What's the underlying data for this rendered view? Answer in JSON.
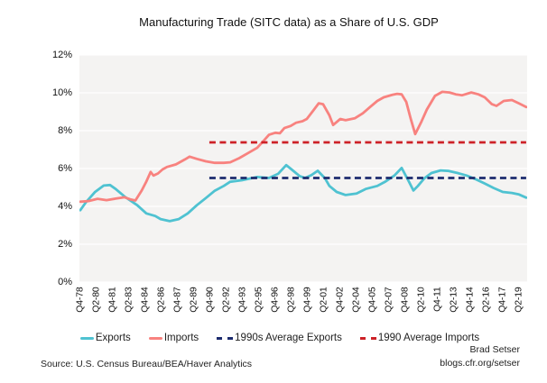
{
  "footer": {
    "source": "Source: U.S. Census Bureau/BEA/Haver Analytics",
    "author": "Brad Setser",
    "url": "blogs.cfr.org/setser"
  },
  "colors": {
    "exports": "#4fc2d1",
    "imports": "#f8827f",
    "avg_exports": "#1c2b6e",
    "avg_imports": "#cd2127",
    "plot_bg": "#f4f3f2",
    "gridline": "#fdfdfc",
    "text": "#1a1a1a"
  },
  "chart_data": {
    "type": "line",
    "title": "Manufacturing Trade (SITC data) as a Share of U.S. GDP",
    "xlabel": "",
    "ylabel": "",
    "ylim": [
      0,
      12
    ],
    "grid": "horizontal",
    "legend_position": "bottom",
    "y_ticks": [
      "0%",
      "2%",
      "4%",
      "6%",
      "8%",
      "10%",
      "12%"
    ],
    "x_tick_labels": [
      "Q4-78",
      "Q2-80",
      "Q4-81",
      "Q2-83",
      "Q4-84",
      "Q2-86",
      "Q4-87",
      "Q2-89",
      "Q4-90",
      "Q2-92",
      "Q4-93",
      "Q2-95",
      "Q4-96",
      "Q2-98",
      "Q4-99",
      "Q2-01",
      "Q4-02",
      "Q2-04",
      "Q4-05",
      "Q2-07",
      "Q4-08",
      "Q2-10",
      "Q4-11",
      "Q2-13",
      "Q4-14",
      "Q2-16",
      "Q4-17",
      "Q2-19"
    ],
    "x_unit_note": "x values below are in x-tick index units (0 = Q4-78, 1 tick = 6 quarters), values are % of GDP",
    "series": [
      {
        "name": "Exports",
        "color_key": "exports",
        "style": "solid",
        "points": [
          [
            0,
            3.8
          ],
          [
            0.33,
            4.2
          ],
          [
            0.89,
            4.75
          ],
          [
            1.44,
            5.1
          ],
          [
            1.83,
            5.13
          ],
          [
            2.17,
            4.92
          ],
          [
            2.72,
            4.52
          ],
          [
            3.5,
            4.06
          ],
          [
            4.06,
            3.63
          ],
          [
            4.61,
            3.49
          ],
          [
            4.94,
            3.33
          ],
          [
            5.5,
            3.22
          ],
          [
            6.06,
            3.33
          ],
          [
            6.61,
            3.63
          ],
          [
            7.17,
            4.06
          ],
          [
            7.72,
            4.44
          ],
          [
            8.28,
            4.83
          ],
          [
            8.83,
            5.08
          ],
          [
            9.22,
            5.3
          ],
          [
            9.94,
            5.38
          ],
          [
            10.89,
            5.55
          ],
          [
            11.61,
            5.5
          ],
          [
            12.17,
            5.72
          ],
          [
            12.67,
            6.18
          ],
          [
            13,
            5.95
          ],
          [
            13.5,
            5.6
          ],
          [
            13.83,
            5.5
          ],
          [
            14.22,
            5.65
          ],
          [
            14.61,
            5.88
          ],
          [
            15.06,
            5.48
          ],
          [
            15.33,
            5.08
          ],
          [
            15.78,
            4.76
          ],
          [
            16.33,
            4.6
          ],
          [
            17,
            4.68
          ],
          [
            17.56,
            4.92
          ],
          [
            18.28,
            5.08
          ],
          [
            18.78,
            5.31
          ],
          [
            19.33,
            5.63
          ],
          [
            19.78,
            6.03
          ],
          [
            20.22,
            5.31
          ],
          [
            20.5,
            4.84
          ],
          [
            20.78,
            5.08
          ],
          [
            21.17,
            5.48
          ],
          [
            21.61,
            5.76
          ],
          [
            22.17,
            5.9
          ],
          [
            22.67,
            5.87
          ],
          [
            23.22,
            5.76
          ],
          [
            23.78,
            5.63
          ],
          [
            24.33,
            5.44
          ],
          [
            24.89,
            5.21
          ],
          [
            25.44,
            4.97
          ],
          [
            26,
            4.76
          ],
          [
            26.56,
            4.71
          ],
          [
            27,
            4.63
          ],
          [
            27.44,
            4.46
          ]
        ]
      },
      {
        "name": "Imports",
        "color_key": "imports",
        "style": "solid",
        "points": [
          [
            0,
            4.25
          ],
          [
            0.5,
            4.28
          ],
          [
            1.06,
            4.4
          ],
          [
            1.61,
            4.33
          ],
          [
            2.17,
            4.41
          ],
          [
            2.72,
            4.48
          ],
          [
            3.11,
            4.36
          ],
          [
            3.39,
            4.31
          ],
          [
            3.78,
            4.84
          ],
          [
            4.06,
            5.31
          ],
          [
            4.33,
            5.82
          ],
          [
            4.5,
            5.63
          ],
          [
            4.78,
            5.74
          ],
          [
            5.06,
            5.95
          ],
          [
            5.33,
            6.08
          ],
          [
            5.89,
            6.22
          ],
          [
            6.44,
            6.48
          ],
          [
            6.72,
            6.63
          ],
          [
            7.17,
            6.51
          ],
          [
            7.72,
            6.38
          ],
          [
            8.28,
            6.3
          ],
          [
            8.83,
            6.3
          ],
          [
            9.22,
            6.33
          ],
          [
            9.78,
            6.55
          ],
          [
            10.33,
            6.82
          ],
          [
            10.89,
            7.1
          ],
          [
            11.28,
            7.46
          ],
          [
            11.61,
            7.78
          ],
          [
            12,
            7.89
          ],
          [
            12.28,
            7.86
          ],
          [
            12.56,
            8.14
          ],
          [
            12.94,
            8.25
          ],
          [
            13.28,
            8.42
          ],
          [
            13.67,
            8.5
          ],
          [
            13.94,
            8.62
          ],
          [
            14.33,
            9.05
          ],
          [
            14.67,
            9.45
          ],
          [
            14.94,
            9.4
          ],
          [
            15.33,
            8.81
          ],
          [
            15.56,
            8.3
          ],
          [
            16,
            8.62
          ],
          [
            16.33,
            8.55
          ],
          [
            16.89,
            8.65
          ],
          [
            17.39,
            8.92
          ],
          [
            17.83,
            9.25
          ],
          [
            18.28,
            9.57
          ],
          [
            18.67,
            9.76
          ],
          [
            19.22,
            9.9
          ],
          [
            19.5,
            9.95
          ],
          [
            19.78,
            9.92
          ],
          [
            20.06,
            9.52
          ],
          [
            20.33,
            8.65
          ],
          [
            20.61,
            7.82
          ],
          [
            21,
            8.49
          ],
          [
            21.33,
            9.12
          ],
          [
            21.83,
            9.84
          ],
          [
            22.28,
            10.05
          ],
          [
            22.72,
            10.02
          ],
          [
            23.11,
            9.92
          ],
          [
            23.5,
            9.87
          ],
          [
            24.06,
            10.02
          ],
          [
            24.5,
            9.92
          ],
          [
            24.89,
            9.76
          ],
          [
            25.33,
            9.4
          ],
          [
            25.61,
            9.31
          ],
          [
            26.06,
            9.57
          ],
          [
            26.56,
            9.62
          ],
          [
            27,
            9.44
          ],
          [
            27.44,
            9.25
          ]
        ]
      }
    ],
    "ref_lines": [
      {
        "name": "1990s Average Exports",
        "color_key": "avg_exports",
        "style": "dashed",
        "value": 5.5,
        "x_start": 7.94,
        "x_end": 27.44
      },
      {
        "name": "1990 Average Imports",
        "color_key": "avg_imports",
        "style": "dashed",
        "value": 7.38,
        "x_start": 7.94,
        "x_end": 27.44
      }
    ],
    "legend": [
      {
        "label": "Exports",
        "color_key": "exports",
        "dashed": false
      },
      {
        "label": "Imports",
        "color_key": "imports",
        "dashed": false
      },
      {
        "label": "1990s Average Exports",
        "color_key": "avg_exports",
        "dashed": true
      },
      {
        "label": "1990 Average Imports",
        "color_key": "avg_imports",
        "dashed": true
      }
    ]
  }
}
